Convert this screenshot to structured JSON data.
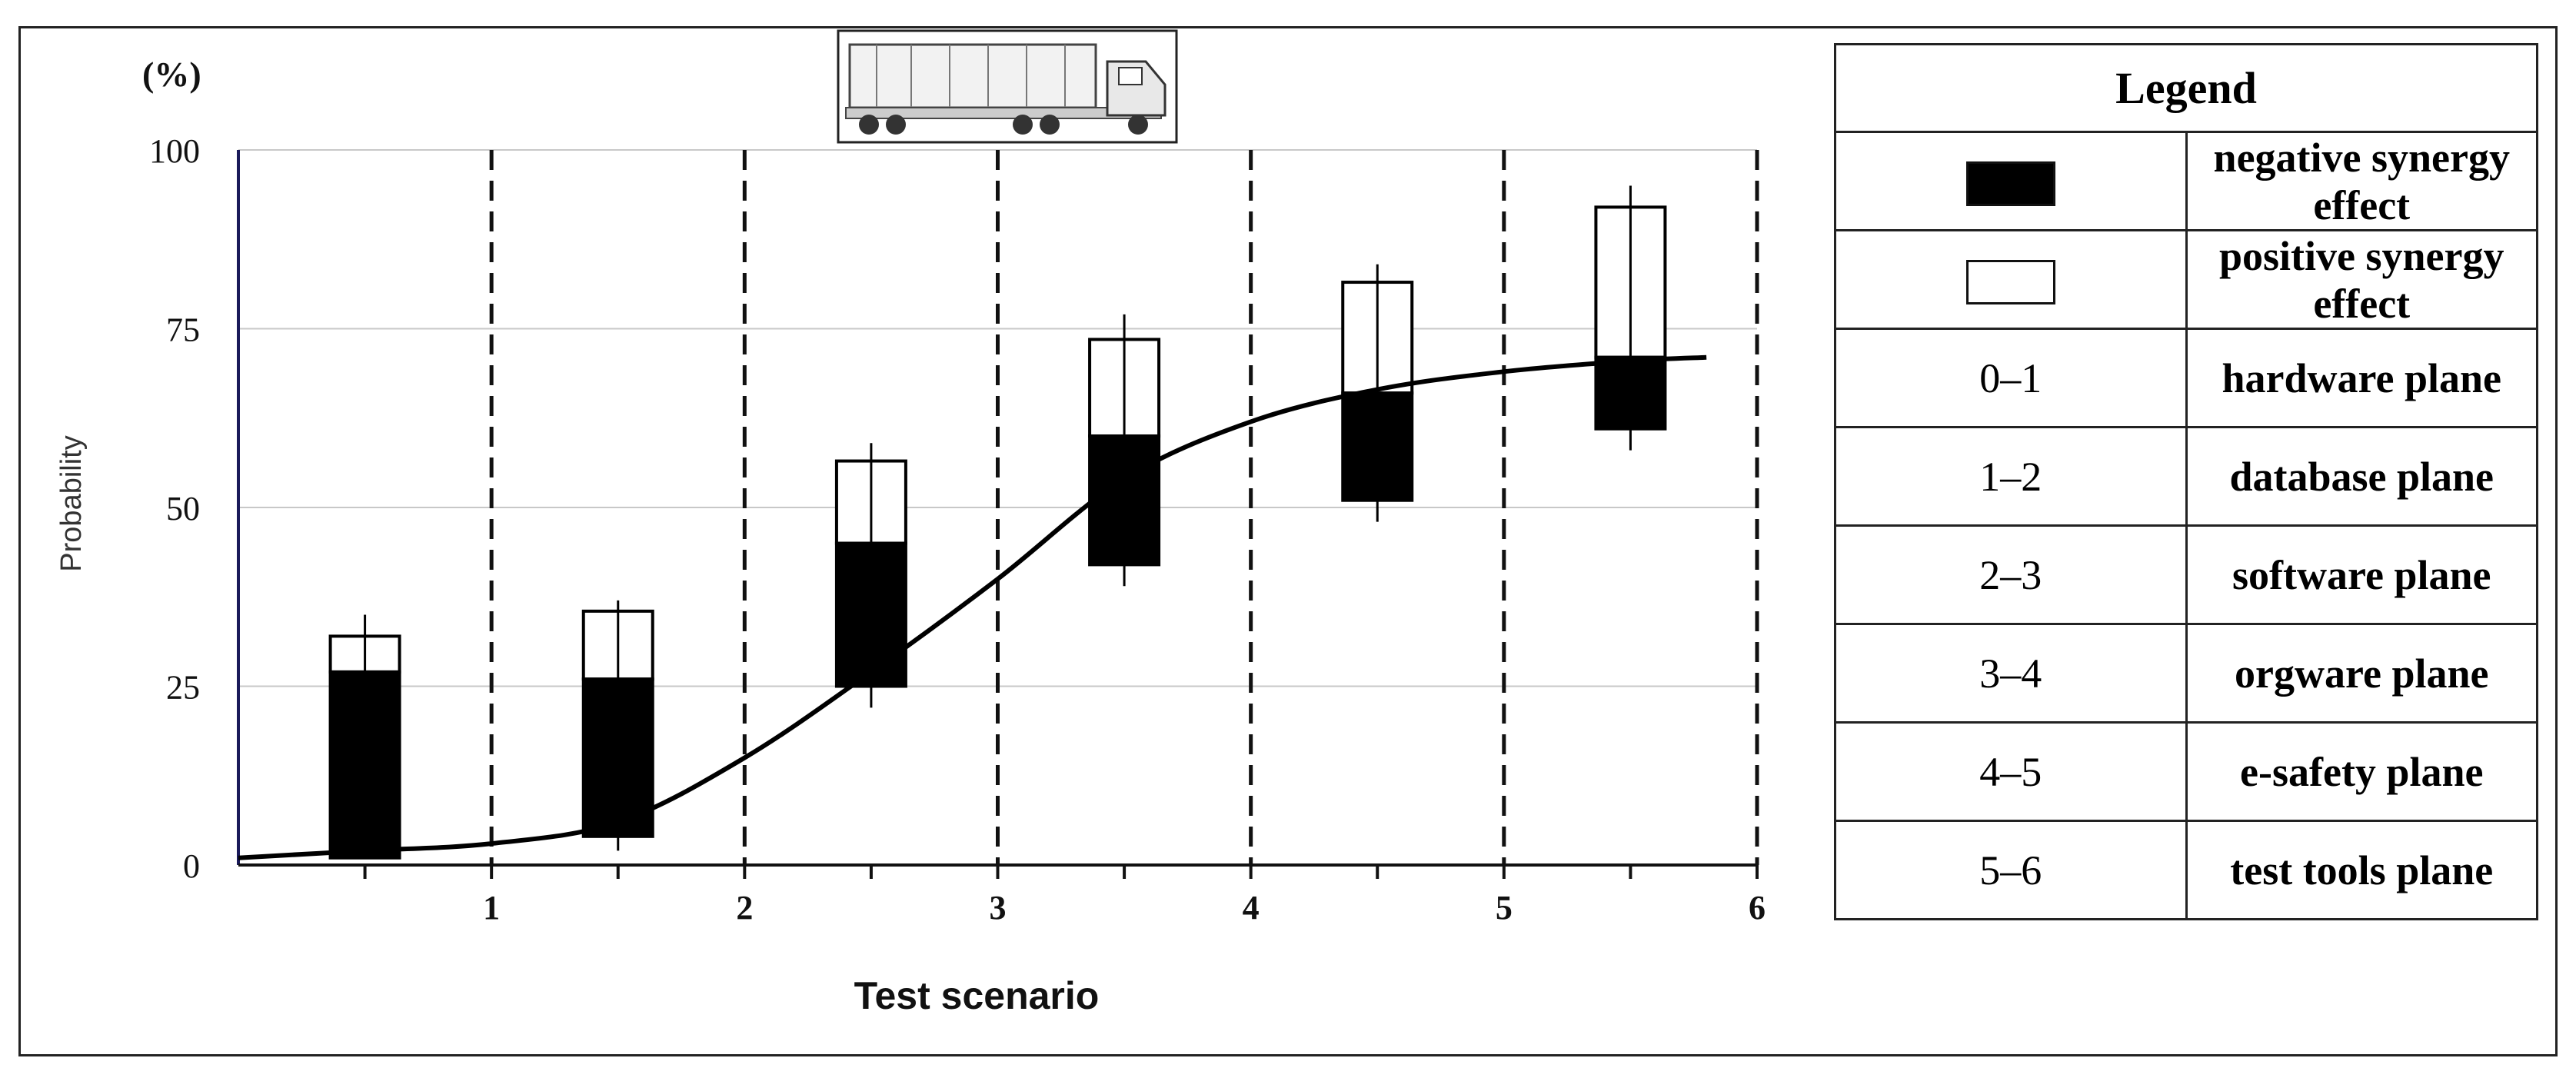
{
  "unit_label": "(%)",
  "chart_data": {
    "type": "bar",
    "xlabel": "Test scenario",
    "ylabel": "Probability",
    "xlim": [
      0,
      6
    ],
    "ylim": [
      0,
      100
    ],
    "x_ticks": [
      1,
      2,
      3,
      4,
      5,
      6
    ],
    "y_ticks": [
      0,
      25,
      50,
      75,
      100
    ],
    "grid": {
      "horizontal": true,
      "vertical_dashed_at": [
        1,
        2,
        3,
        4,
        5,
        6
      ]
    },
    "bars": [
      {
        "x": 0.5,
        "negative": [
          1,
          27
        ],
        "positive": [
          27,
          32
        ],
        "error": [
          1,
          35
        ]
      },
      {
        "x": 1.5,
        "negative": [
          4,
          26
        ],
        "positive": [
          26,
          35.5
        ],
        "error": [
          2,
          37
        ]
      },
      {
        "x": 2.5,
        "negative": [
          25,
          45
        ],
        "positive": [
          45,
          56.5
        ],
        "error": [
          22,
          59
        ]
      },
      {
        "x": 3.5,
        "negative": [
          42,
          60
        ],
        "positive": [
          60,
          73.5
        ],
        "error": [
          39,
          77
        ]
      },
      {
        "x": 4.5,
        "negative": [
          51,
          66
        ],
        "positive": [
          66,
          81.5
        ],
        "error": [
          48,
          84
        ]
      },
      {
        "x": 5.5,
        "negative": [
          61,
          71
        ],
        "positive": [
          71,
          92
        ],
        "error": [
          58,
          95
        ]
      }
    ],
    "curve": {
      "x": [
        0,
        0.5,
        1,
        1.5,
        2,
        2.5,
        3,
        3.5,
        4,
        4.5,
        5,
        5.5,
        5.8
      ],
      "y": [
        1,
        2,
        3,
        6,
        15,
        27,
        40,
        54,
        62,
        66.5,
        69,
        70.5,
        71
      ]
    }
  },
  "legend": {
    "title": "Legend",
    "items": [
      {
        "key": "",
        "swatch": "negative",
        "label": "negative synergy effect"
      },
      {
        "key": "",
        "swatch": "positive",
        "label": "positive synergy effect"
      },
      {
        "key": "0–1",
        "label": "hardware plane"
      },
      {
        "key": "1–2",
        "label": "database plane"
      },
      {
        "key": "2–3",
        "label": "software plane"
      },
      {
        "key": "3–4",
        "label": "orgware plane"
      },
      {
        "key": "4–5",
        "label": "e-safety plane"
      },
      {
        "key": "5–6",
        "label": "test tools plane"
      }
    ]
  },
  "truck_icon": "truck-icon"
}
